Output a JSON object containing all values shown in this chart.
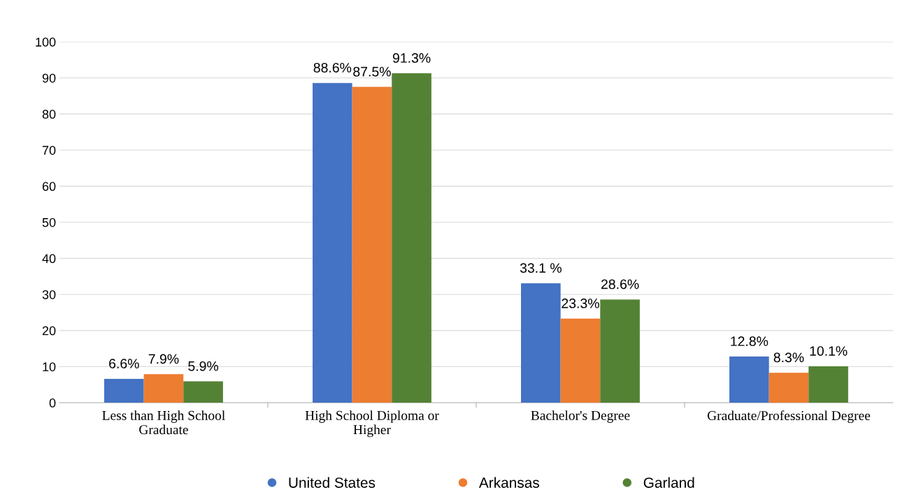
{
  "chart_data": {
    "type": "bar",
    "categories": [
      "Less than High School\nGraduate",
      "High School Diploma or\nHigher",
      "Bachelor's Degree",
      "Graduate/Professional Degree"
    ],
    "series": [
      {
        "name": "United States",
        "color": "#4472c4",
        "values": [
          6.6,
          88.6,
          33.1,
          12.8
        ],
        "value_labels": [
          "6.6%",
          "88.6%",
          "33.1 %",
          "12.8%"
        ]
      },
      {
        "name": "Arkansas",
        "color": "#ed7d31",
        "values": [
          7.9,
          87.5,
          23.3,
          8.3
        ],
        "value_labels": [
          "7.9%",
          "87.5%",
          "23.3%",
          "8.3%"
        ]
      },
      {
        "name": "Garland",
        "color": "#548235",
        "values": [
          5.9,
          91.3,
          28.6,
          10.1
        ],
        "value_labels": [
          "5.9%",
          "91.3%",
          "28.6%",
          "10.1%"
        ]
      }
    ],
    "ylim": [
      0,
      100
    ],
    "yticks": [
      0,
      10,
      20,
      30,
      40,
      50,
      60,
      70,
      80,
      90,
      100
    ],
    "grid": "y",
    "legend": "bottom",
    "marker": "circle"
  }
}
